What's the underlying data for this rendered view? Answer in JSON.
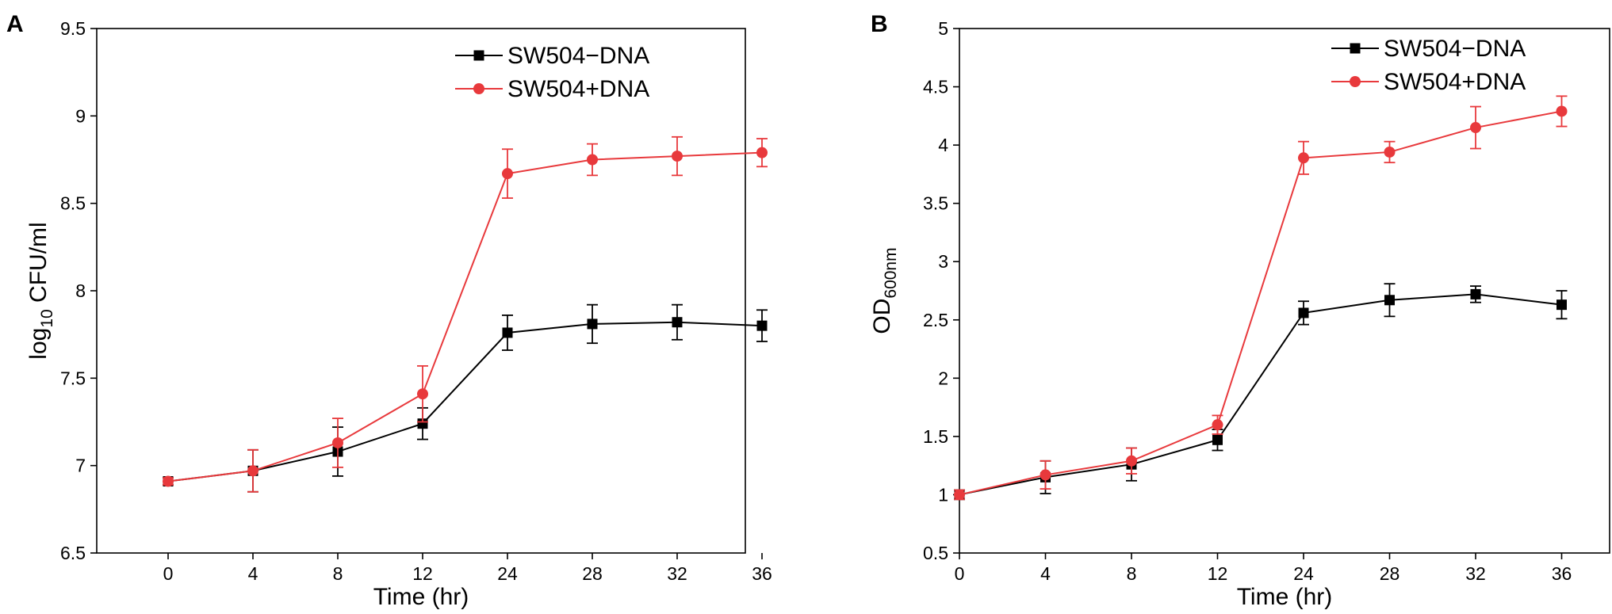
{
  "colors": {
    "series_minus": "#000000",
    "series_plus": "#e8393c",
    "axis": "#000000"
  },
  "chart_data": [
    {
      "panel": "A",
      "type": "line",
      "title": "",
      "xlabel": "Time (hr)",
      "ylabel": "log",
      "ylabel_sub": "10",
      "ylabel_tail": " CFU/ml",
      "categories": [
        "0",
        "4",
        "8",
        "12",
        "24",
        "28",
        "32",
        "36"
      ],
      "ylim": [
        6.5,
        9.5
      ],
      "yticks": [
        "6.5",
        "7",
        "7.5",
        "8",
        "8.5",
        "9",
        "9.5"
      ],
      "grid": false,
      "legend_position": "top-right",
      "series": [
        {
          "name": "SW504−DNA",
          "color": "#000000",
          "marker": "square",
          "values": [
            6.91,
            6.97,
            7.08,
            7.24,
            7.76,
            7.81,
            7.82,
            7.8
          ],
          "errors": [
            0.02,
            0.12,
            0.14,
            0.09,
            0.1,
            0.11,
            0.1,
            0.09
          ]
        },
        {
          "name": "SW504+DNA",
          "color": "#e8393c",
          "marker": "circle",
          "values": [
            6.91,
            6.97,
            7.13,
            7.41,
            8.67,
            8.75,
            8.77,
            8.79
          ],
          "errors": [
            0.02,
            0.12,
            0.14,
            0.16,
            0.14,
            0.09,
            0.11,
            0.08
          ]
        }
      ]
    },
    {
      "panel": "B",
      "type": "line",
      "title": "",
      "xlabel": "Time (hr)",
      "ylabel": "OD",
      "ylabel_sub": "600nm",
      "ylabel_tail": "",
      "categories": [
        "0",
        "4",
        "8",
        "12",
        "24",
        "28",
        "32",
        "36"
      ],
      "ylim": [
        0.5,
        5
      ],
      "yticks": [
        "0.5",
        "1",
        "1.5",
        "2",
        "2.5",
        "3",
        "3.5",
        "4",
        "4.5",
        "5"
      ],
      "grid": false,
      "legend_position": "top-right",
      "series": [
        {
          "name": "SW504−DNA",
          "color": "#000000",
          "marker": "square",
          "values": [
            1.0,
            1.15,
            1.26,
            1.47,
            2.56,
            2.67,
            2.72,
            2.63
          ],
          "errors": [
            0.04,
            0.14,
            0.14,
            0.09,
            0.1,
            0.14,
            0.07,
            0.12
          ]
        },
        {
          "name": "SW504+DNA",
          "color": "#e8393c",
          "marker": "circle",
          "values": [
            1.0,
            1.17,
            1.29,
            1.6,
            3.89,
            3.94,
            4.15,
            4.29
          ],
          "errors": [
            0.04,
            0.12,
            0.11,
            0.08,
            0.14,
            0.09,
            0.18,
            0.13
          ]
        }
      ]
    }
  ]
}
